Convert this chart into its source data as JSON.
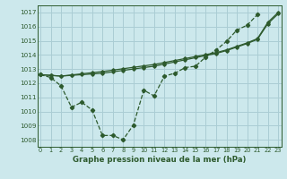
{
  "xlabel": "Graphe pression niveau de la mer (hPa)",
  "bg_color": "#cce8ec",
  "grid_color": "#aacdd4",
  "line_color": "#2d5a2d",
  "xlim": [
    -0.3,
    23.3
  ],
  "ylim": [
    1007.5,
    1017.5
  ],
  "yticks": [
    1008,
    1009,
    1010,
    1011,
    1012,
    1013,
    1014,
    1015,
    1016,
    1017
  ],
  "xticks": [
    0,
    1,
    2,
    3,
    4,
    5,
    6,
    7,
    8,
    9,
    10,
    11,
    12,
    13,
    14,
    15,
    16,
    17,
    18,
    19,
    20,
    21,
    22,
    23
  ],
  "series_smooth1": [
    1012.6,
    1012.55,
    1012.5,
    1012.55,
    1012.6,
    1012.65,
    1012.7,
    1012.8,
    1012.9,
    1013.0,
    1013.1,
    1013.2,
    1013.35,
    1013.5,
    1013.65,
    1013.8,
    1013.95,
    1014.1,
    1014.3,
    1014.55,
    1014.8,
    1015.1,
    1016.2,
    1016.9
  ],
  "series_smooth2": [
    1012.6,
    1012.55,
    1012.5,
    1012.58,
    1012.66,
    1012.74,
    1012.82,
    1012.92,
    1013.02,
    1013.12,
    1013.22,
    1013.32,
    1013.46,
    1013.6,
    1013.74,
    1013.88,
    1014.02,
    1014.16,
    1014.35,
    1014.6,
    1014.85,
    1015.15,
    1016.3,
    1017.0
  ],
  "series_volatile": [
    1012.6,
    1012.4,
    1011.8,
    1010.3,
    1010.65,
    1010.1,
    1008.3,
    1008.3,
    1008.0,
    1009.05,
    1011.5,
    1011.1,
    1012.5,
    1012.7,
    1013.1,
    1013.2,
    1013.85,
    1014.35,
    1014.95,
    1015.75,
    1016.1,
    1016.85,
    null,
    null
  ]
}
